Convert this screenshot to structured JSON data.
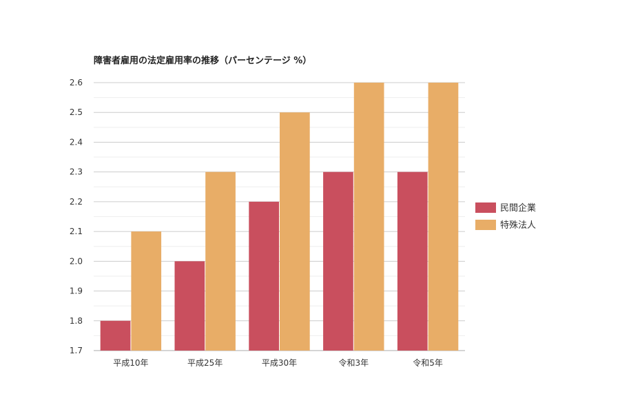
{
  "chart_data": {
    "type": "bar",
    "title": "障害者雇用の法定雇用率の推移（パーセンテージ %）",
    "xlabel": "",
    "ylabel": "",
    "categories": [
      "平成10年",
      "平成25年",
      "平成30年",
      "令和3年",
      "令和5年"
    ],
    "series": [
      {
        "name": "民間企業",
        "values": [
          1.8,
          2.0,
          2.2,
          2.3,
          2.3
        ],
        "color": "#c94f5e"
      },
      {
        "name": "特殊法人",
        "values": [
          2.1,
          2.3,
          2.5,
          2.6,
          2.6
        ],
        "color": "#e8ad67"
      }
    ],
    "ylim": [
      1.7,
      2.6
    ],
    "yticks": [
      "1.7",
      "1.8",
      "1.9",
      "2.0",
      "2.1",
      "2.2",
      "2.3",
      "2.4",
      "2.5",
      "2.6"
    ],
    "grid": true,
    "legend_position": "right"
  }
}
